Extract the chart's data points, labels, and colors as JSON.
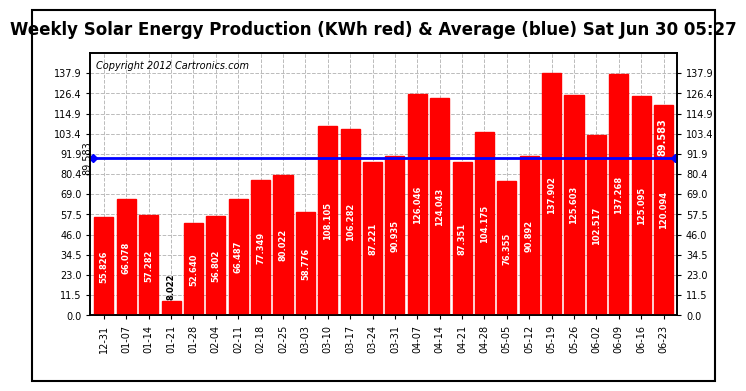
{
  "title": "Weekly Solar Energy Production (KWh red) & Average (blue) Sat Jun 30 05:27",
  "copyright": "Copyright 2012 Cartronics.com",
  "average": 89.583,
  "avg_label": "89.583",
  "categories": [
    "12-31",
    "01-07",
    "01-14",
    "01-21",
    "01-28",
    "02-04",
    "02-11",
    "02-18",
    "02-25",
    "03-03",
    "03-10",
    "03-17",
    "03-24",
    "03-31",
    "04-07",
    "04-14",
    "04-21",
    "04-28",
    "05-05",
    "05-12",
    "05-19",
    "05-26",
    "06-02",
    "06-09",
    "06-16",
    "06-23"
  ],
  "values": [
    55.826,
    66.078,
    57.282,
    8.022,
    52.64,
    56.802,
    66.487,
    77.349,
    80.022,
    58.776,
    108.105,
    106.282,
    87.221,
    90.935,
    126.046,
    124.043,
    87.351,
    104.175,
    76.355,
    90.892,
    137.902,
    125.603,
    102.517,
    137.268,
    125.095,
    120.094
  ],
  "bar_color": "#FF0000",
  "avg_line_color": "#0000FF",
  "bg_color": "#FFFFFF",
  "plot_bg_color": "#FFFFFF",
  "grid_color": "#BBBBBB",
  "ylim": [
    0.0,
    149.5
  ],
  "yticks": [
    0.0,
    11.5,
    23.0,
    34.5,
    46.0,
    57.5,
    69.0,
    80.4,
    91.9,
    103.4,
    114.9,
    126.4,
    137.9
  ],
  "title_fontsize": 12,
  "copyright_fontsize": 7,
  "bar_label_fontsize": 6,
  "tick_fontsize": 7,
  "avg_label_fontsize": 7
}
